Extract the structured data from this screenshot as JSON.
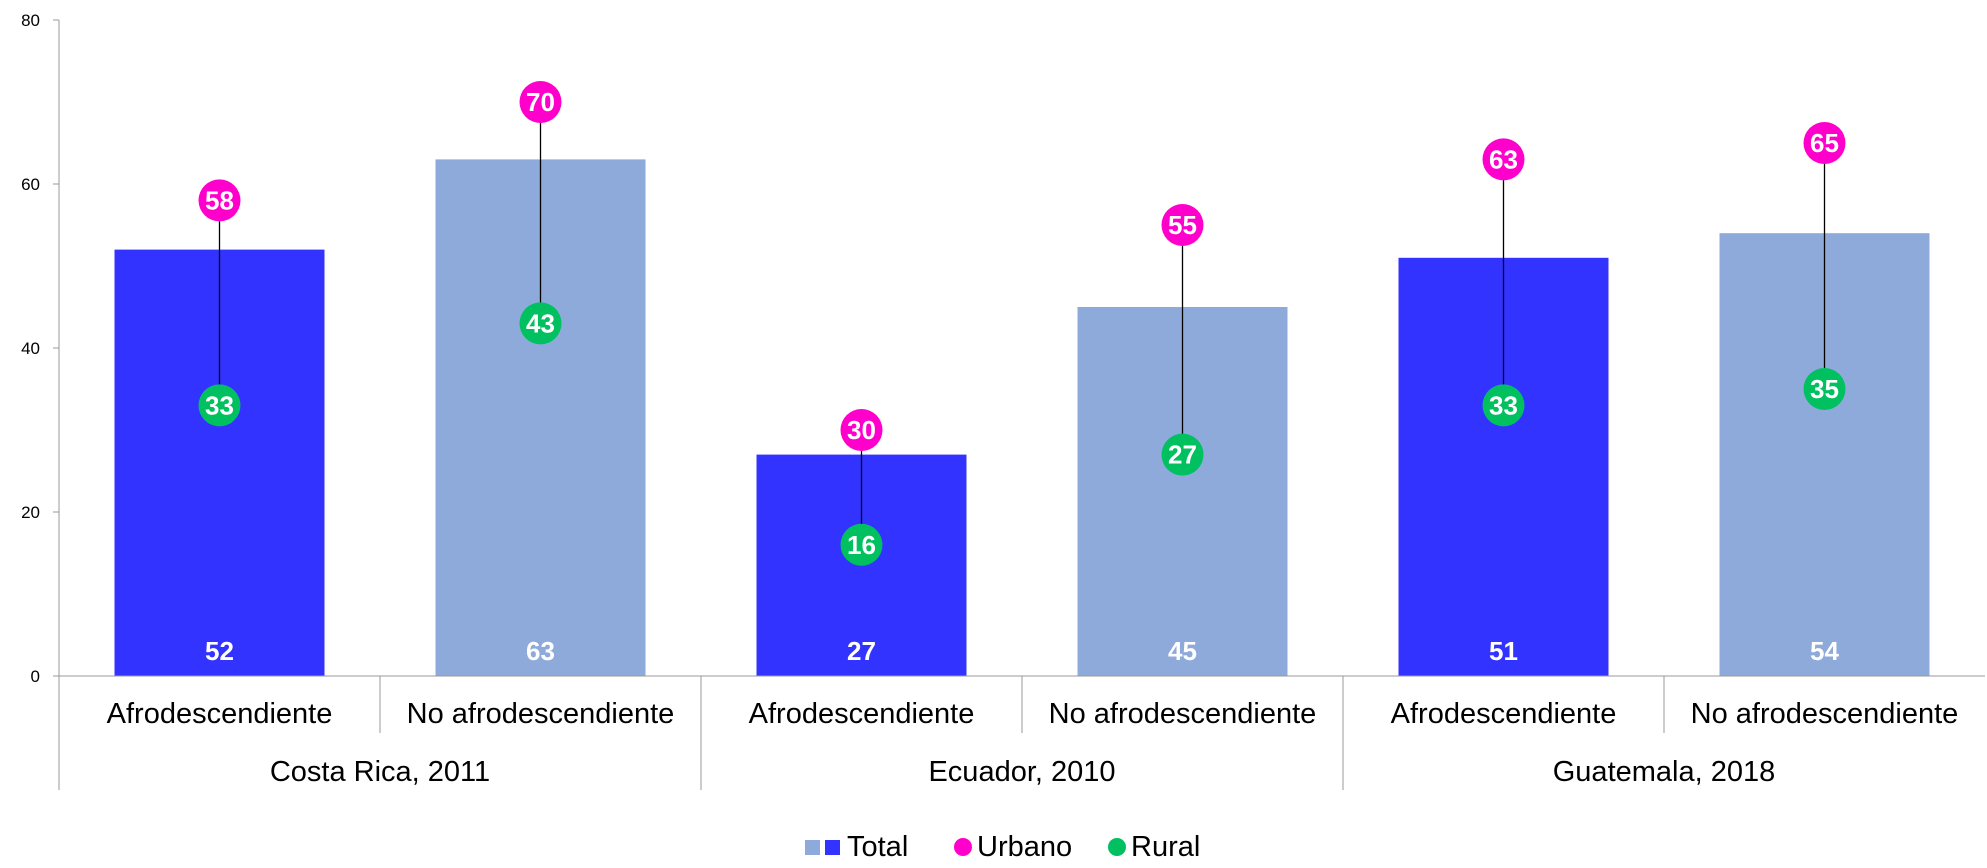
{
  "chart_data": {
    "type": "bar",
    "title": "",
    "xlabel": "",
    "ylabel": "",
    "ylim": [
      0,
      80
    ],
    "yticks": [
      0,
      20,
      40,
      60,
      80
    ],
    "grid": false,
    "legend_position": "bottom-center",
    "groups": [
      {
        "label": "Costa Rica, 2011",
        "categories": [
          "Afrodescendiente",
          "No afrodescendiente"
        ]
      },
      {
        "label": "Ecuador, 2010",
        "categories": [
          "Afrodescendiente",
          "No afrodescendiente"
        ]
      },
      {
        "label": "Guatemala, 2018",
        "categories": [
          "Afrodescendiente",
          "No afrodescendiente"
        ]
      }
    ],
    "categories": [
      "Afrodescendiente",
      "No afrodescendiente",
      "Afrodescendiente",
      "No afrodescendiente",
      "Afrodescendiente",
      "No afrodescendiente"
    ],
    "series": [
      {
        "name": "Total",
        "type": "bar",
        "values": [
          52,
          63,
          27,
          45,
          51,
          54
        ],
        "labels": [
          "52",
          "63",
          "27",
          "45",
          "51",
          "54"
        ]
      },
      {
        "name": "Urbano",
        "type": "dot",
        "values": [
          58,
          70,
          30,
          55,
          63,
          65
        ],
        "labels": [
          "58",
          "70",
          "30",
          "55",
          "63",
          "65"
        ]
      },
      {
        "name": "Rural",
        "type": "dot",
        "values": [
          33,
          43,
          16,
          27,
          33,
          35
        ],
        "labels": [
          "33",
          "43",
          "16",
          "27",
          "33",
          "35"
        ]
      }
    ],
    "colors": {
      "afro_bar": "#3333ff",
      "no_afro_bar": "#8eaadb",
      "urbano": "#ff00cc",
      "rural": "#00c060",
      "axis": "#999999",
      "text": "#000000",
      "bar_label": "#ffffff"
    }
  }
}
